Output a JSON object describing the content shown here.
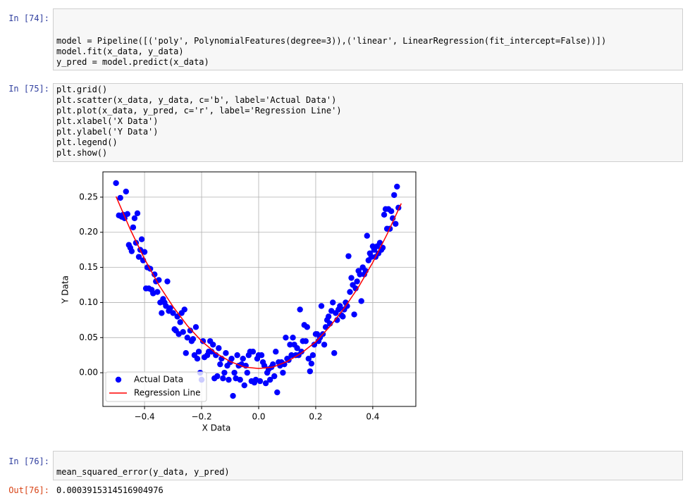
{
  "cells": [
    {
      "prompt": "In [74]:",
      "code": [
        "model = Pipeline([('poly', PolynomialFeatures(degree=3)),('linear', LinearRegression(fit_intercept=False))])",
        "model.fit(x_data, y_data)",
        "y_pred = model.predict(x_data)"
      ]
    },
    {
      "prompt": "In [75]:",
      "code": [
        "plt.grid()",
        "plt.scatter(x_data, y_data, c='b', label='Actual Data')",
        "plt.plot(x_data, y_pred, c='r', label='Regression Line')",
        "plt.xlabel('X Data')",
        "plt.ylabel('Y Data')",
        "plt.legend()",
        "plt.show()"
      ]
    },
    {
      "prompt": "In [76]:",
      "code": [
        "mean_squared_error(y_data, y_pred)"
      ]
    }
  ],
  "output": {
    "prompt": "Out[76]:",
    "text": "0.0003915314516904976"
  },
  "chart_data": {
    "type": "scatter",
    "xlabel": "X Data",
    "ylabel": "Y Data",
    "xlim": [
      -0.546,
      0.551
    ],
    "ylim": [
      -0.048,
      0.286
    ],
    "xticks": [
      {
        "value": -0.4,
        "label": "−0.4"
      },
      {
        "value": -0.2,
        "label": "−0.2"
      },
      {
        "value": 0,
        "label": "0.0"
      },
      0.2,
      0.4
    ],
    "yticks": [
      {
        "value": 0,
        "label": "0.00"
      },
      0.05,
      {
        "value": 0.1,
        "label": "0.10"
      },
      0.15,
      {
        "value": 0.2,
        "label": "0.20"
      },
      0.25
    ],
    "grid": true,
    "legend": "lower left",
    "series": [
      {
        "name": "Actual Data",
        "type": "scatter",
        "color": "#0000ff",
        "x": [
          -0.5,
          -0.49,
          -0.485,
          -0.48,
          -0.475,
          -0.47,
          -0.465,
          -0.46,
          -0.455,
          -0.45,
          -0.445,
          -0.44,
          -0.435,
          -0.43,
          -0.425,
          -0.42,
          -0.415,
          -0.41,
          -0.405,
          -0.4,
          -0.395,
          -0.39,
          -0.385,
          -0.38,
          -0.375,
          -0.37,
          -0.365,
          -0.36,
          -0.355,
          -0.35,
          -0.345,
          -0.34,
          -0.335,
          -0.33,
          -0.325,
          -0.32,
          -0.315,
          -0.31,
          -0.3,
          -0.295,
          -0.29,
          -0.285,
          -0.28,
          -0.275,
          -0.27,
          -0.265,
          -0.26,
          -0.255,
          -0.25,
          -0.24,
          -0.235,
          -0.23,
          -0.225,
          -0.22,
          -0.215,
          -0.21,
          -0.205,
          -0.2,
          -0.195,
          -0.19,
          -0.18,
          -0.175,
          -0.17,
          -0.165,
          -0.16,
          -0.155,
          -0.15,
          -0.145,
          -0.14,
          -0.135,
          -0.13,
          -0.125,
          -0.12,
          -0.115,
          -0.11,
          -0.105,
          -0.1,
          -0.095,
          -0.09,
          -0.085,
          -0.08,
          -0.075,
          -0.07,
          -0.065,
          -0.06,
          -0.055,
          -0.05,
          -0.045,
          -0.04,
          -0.035,
          -0.03,
          -0.025,
          -0.02,
          -0.015,
          -0.01,
          -0.005,
          0.0,
          0.005,
          0.01,
          0.015,
          0.02,
          0.025,
          0.03,
          0.035,
          0.04,
          0.045,
          0.05,
          0.055,
          0.06,
          0.065,
          0.07,
          0.075,
          0.08,
          0.085,
          0.09,
          0.095,
          0.1,
          0.105,
          0.11,
          0.115,
          0.12,
          0.125,
          0.13,
          0.135,
          0.14,
          0.145,
          0.15,
          0.155,
          0.16,
          0.165,
          0.17,
          0.175,
          0.18,
          0.185,
          0.19,
          0.195,
          0.2,
          0.205,
          0.21,
          0.215,
          0.22,
          0.225,
          0.23,
          0.235,
          0.24,
          0.245,
          0.25,
          0.255,
          0.26,
          0.265,
          0.27,
          0.275,
          0.28,
          0.285,
          0.29,
          0.295,
          0.3,
          0.305,
          0.31,
          0.315,
          0.32,
          0.325,
          0.33,
          0.335,
          0.34,
          0.345,
          0.35,
          0.355,
          0.36,
          0.365,
          0.37,
          0.375,
          0.38,
          0.385,
          0.39,
          0.395,
          0.4,
          0.405,
          0.41,
          0.415,
          0.42,
          0.425,
          0.43,
          0.435,
          0.44,
          0.445,
          0.45,
          0.455,
          0.46,
          0.465,
          0.47,
          0.475,
          0.48,
          0.485,
          0.49
        ],
        "values": [
          0.27,
          0.224,
          0.249,
          0.222,
          0.225,
          0.22,
          0.258,
          0.226,
          0.182,
          0.178,
          0.173,
          0.207,
          0.22,
          0.185,
          0.227,
          0.165,
          0.175,
          0.19,
          0.16,
          0.172,
          0.12,
          0.15,
          0.12,
          0.148,
          0.118,
          0.113,
          0.14,
          0.13,
          0.115,
          0.132,
          0.1,
          0.085,
          0.105,
          0.1,
          0.095,
          0.13,
          0.088,
          0.092,
          0.085,
          0.062,
          0.06,
          0.08,
          0.055,
          0.072,
          0.085,
          0.058,
          0.09,
          0.028,
          0.05,
          0.06,
          0.045,
          0.048,
          0.025,
          0.065,
          0.02,
          0.03,
          0.0,
          -0.01,
          0.045,
          0.022,
          0.025,
          0.03,
          0.045,
          0.03,
          0.04,
          -0.008,
          0.025,
          -0.005,
          0.035,
          0.012,
          0.02,
          -0.008,
          0.0,
          0.028,
          0.01,
          -0.01,
          0.015,
          0.02,
          -0.033,
          0.0,
          -0.008,
          0.025,
          0.01,
          -0.01,
          0.012,
          0.02,
          -0.018,
          0.01,
          0.0,
          0.025,
          0.03,
          -0.012,
          0.03,
          -0.014,
          -0.01,
          0.02,
          0.025,
          -0.012,
          0.025,
          0.015,
          0.01,
          -0.015,
          0.0,
          0.005,
          -0.01,
          0.008,
          0.012,
          -0.005,
          0.03,
          -0.028,
          0.015,
          0.01,
          0.015,
          0.0,
          0.012,
          0.05,
          0.02,
          0.018,
          0.04,
          0.025,
          0.05,
          0.04,
          0.025,
          0.035,
          0.025,
          0.09,
          0.03,
          0.045,
          0.068,
          0.045,
          0.065,
          0.02,
          0.002,
          0.013,
          0.025,
          0.04,
          0.055,
          0.055,
          0.045,
          0.05,
          0.095,
          0.055,
          0.04,
          0.065,
          0.075,
          0.08,
          0.07,
          0.088,
          0.1,
          0.028,
          0.085,
          0.075,
          0.09,
          0.095,
          0.082,
          0.08,
          0.09,
          0.1,
          0.095,
          0.166,
          0.115,
          0.135,
          0.125,
          0.083,
          0.12,
          0.13,
          0.145,
          0.14,
          0.102,
          0.15,
          0.14,
          0.145,
          0.195,
          0.16,
          0.17,
          0.165,
          0.18,
          0.175,
          0.165,
          0.18,
          0.17,
          0.185,
          0.175,
          0.178,
          0.225,
          0.233,
          0.205,
          0.233,
          0.205,
          0.23,
          0.22,
          0.253,
          0.212,
          0.265,
          0.235
        ]
      },
      {
        "name": "Regression Line",
        "type": "line",
        "color": "#ff0000",
        "x": [
          -0.5,
          -0.45,
          -0.4,
          -0.35,
          -0.3,
          -0.25,
          -0.2,
          -0.15,
          -0.1,
          -0.05,
          0,
          0.05,
          0.1,
          0.15,
          0.2,
          0.25,
          0.3,
          0.35,
          0.4,
          0.45,
          0.5
        ],
        "values": [
          0.251,
          0.204,
          0.162,
          0.125,
          0.094,
          0.067,
          0.045,
          0.028,
          0.016,
          0.008,
          0.006,
          0.008,
          0.016,
          0.028,
          0.044,
          0.066,
          0.092,
          0.122,
          0.157,
          0.197,
          0.241
        ]
      }
    ]
  }
}
